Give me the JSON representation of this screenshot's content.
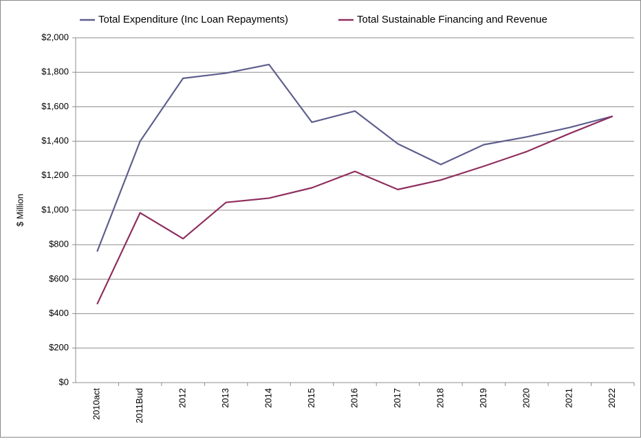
{
  "chart_data": {
    "type": "line",
    "ylabel": "$ Million",
    "categories": [
      "2010act",
      "2011Bud",
      "2012",
      "2013",
      "2014",
      "2015",
      "2016",
      "2017",
      "2018",
      "2019",
      "2020",
      "2021",
      "2022"
    ],
    "series": [
      {
        "name": "Total Expenditure (Inc Loan Repayments)",
        "color": "#5e5e8e",
        "values": [
          760,
          1400,
          1765,
          1795,
          1845,
          1510,
          1575,
          1385,
          1265,
          1380,
          1425,
          1480,
          1545
        ]
      },
      {
        "name": "Total Sustainable Financing and Revenue",
        "color": "#8e2e5e",
        "values": [
          455,
          985,
          835,
          1045,
          1070,
          1130,
          1225,
          1120,
          1175,
          1255,
          1340,
          1445,
          1545
        ]
      }
    ],
    "ylim": [
      0,
      2000
    ],
    "yticks": [
      {
        "value": 0,
        "label": "$0"
      },
      {
        "value": 200,
        "label": "$200"
      },
      {
        "value": 400,
        "label": "$400"
      },
      {
        "value": 600,
        "label": "$600"
      },
      {
        "value": 800,
        "label": "$800"
      },
      {
        "value": 1000,
        "label": "$1,000"
      },
      {
        "value": 1200,
        "label": "$1,200"
      },
      {
        "value": 1400,
        "label": "$1,400"
      },
      {
        "value": 1600,
        "label": "$1,600"
      },
      {
        "value": 1800,
        "label": "$1,800"
      },
      {
        "value": 2000,
        "label": "$2,000"
      }
    ],
    "grid": true,
    "legend": "top"
  }
}
